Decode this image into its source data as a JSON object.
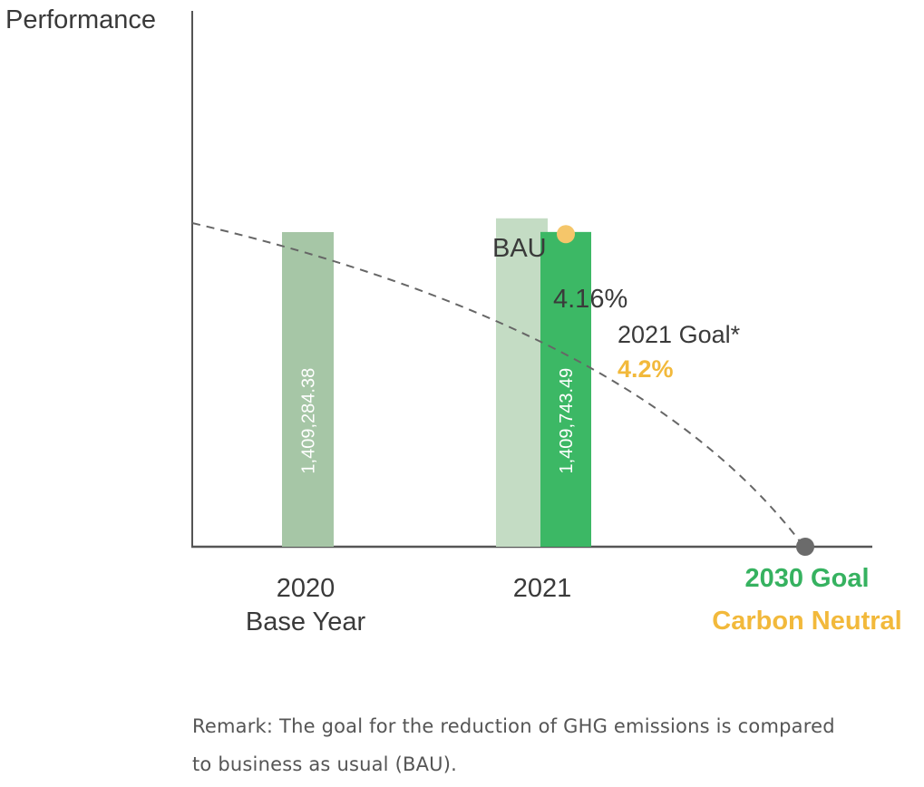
{
  "chart_data": {
    "type": "bar",
    "ylabel": "Performance",
    "categories": [
      {
        "year": "2020",
        "sublabel": "Base Year"
      },
      {
        "year": "2021",
        "sublabel": ""
      }
    ],
    "bars": [
      {
        "category": "2020",
        "name": "",
        "value": 1409284.38,
        "label": "1,409,284.38",
        "color": "#a6c6a6"
      },
      {
        "category": "2021",
        "name": "BAU",
        "value": 1470941.0,
        "label": "",
        "color": "#c4dcc4"
      },
      {
        "category": "2021",
        "name": "",
        "value": 1409743.49,
        "label": "1,409,743.49",
        "color": "#3cb865"
      }
    ],
    "ylim": [
      0,
      2400000
    ],
    "bau_label": "BAU",
    "reduction_pct": "4.16%",
    "goal_2021_label": "2021 Goal*",
    "goal_2021_value": "4.2%",
    "goal_2021_marker_value": 1400000,
    "goal_2021_color": "#f5c66a",
    "goal_2030_label": "2030 Goal",
    "goal_2030_sublabel": "Carbon Neutral",
    "goal_2030_value": 0,
    "goal_2030_marker_color": "#6b6b6b",
    "trend_line": "dashed",
    "grid": false
  },
  "remark": {
    "line1": "Remark: The goal for the reduction of GHG emissions is compared",
    "line2": "to business as usual (BAU)."
  }
}
